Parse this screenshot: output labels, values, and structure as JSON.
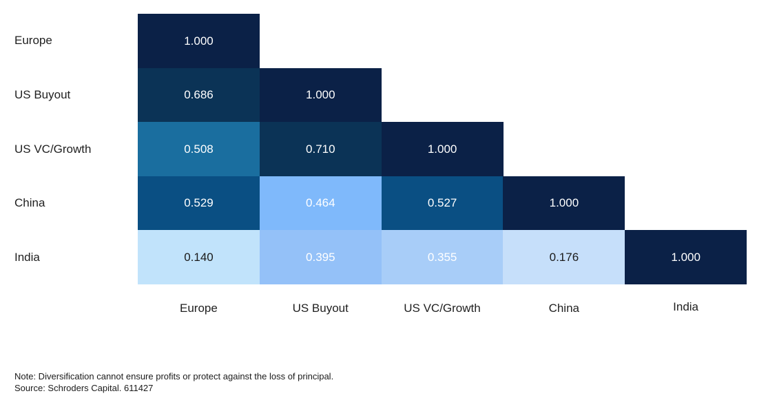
{
  "chart_data": {
    "type": "heatmap",
    "rows": [
      "Europe",
      "US Buyout",
      "US VC/Growth",
      "China",
      "India"
    ],
    "columns": [
      "Europe",
      "US Buyout",
      "US VC/Growth",
      "China",
      "India"
    ],
    "values": [
      [
        "1.000",
        null,
        null,
        null,
        null
      ],
      [
        "0.686",
        "1.000",
        null,
        null,
        null
      ],
      [
        "0.508",
        "0.710",
        "1.000",
        null,
        null
      ],
      [
        "0.529",
        "0.464",
        "0.527",
        "1.000",
        null
      ],
      [
        "0.140",
        "0.395",
        "0.355",
        "0.176",
        "1.000"
      ]
    ],
    "cell_colors": [
      [
        "#0b2147",
        null,
        null,
        null,
        null
      ],
      [
        "#0b3356",
        "#0b2147",
        null,
        null,
        null
      ],
      [
        "#1a6e9f",
        "#0b3356",
        "#0b2147",
        null,
        null
      ],
      [
        "#0a4f83",
        "#7fb9fb",
        "#0a4f83",
        "#0b2147",
        null
      ],
      [
        "#c1e3fb",
        "#94c1f8",
        "#a8cdf8",
        "#c6dffa",
        "#0b2147"
      ]
    ],
    "text_colors": [
      [
        "#ffffff",
        null,
        null,
        null,
        null
      ],
      [
        "#ffffff",
        "#ffffff",
        null,
        null,
        null
      ],
      [
        "#ffffff",
        "#ffffff",
        "#ffffff",
        null,
        null
      ],
      [
        "#ffffff",
        "#ffffff",
        "#ffffff",
        "#ffffff",
        null
      ],
      [
        "#1a1a1a",
        "#ffffff",
        "#ffffff",
        "#1a1a1a",
        "#ffffff"
      ]
    ]
  },
  "notes": {
    "note": "Note: Diversification cannot ensure profits or protect against the loss of principal.",
    "source": "Source: Schroders Capital. 611427"
  }
}
